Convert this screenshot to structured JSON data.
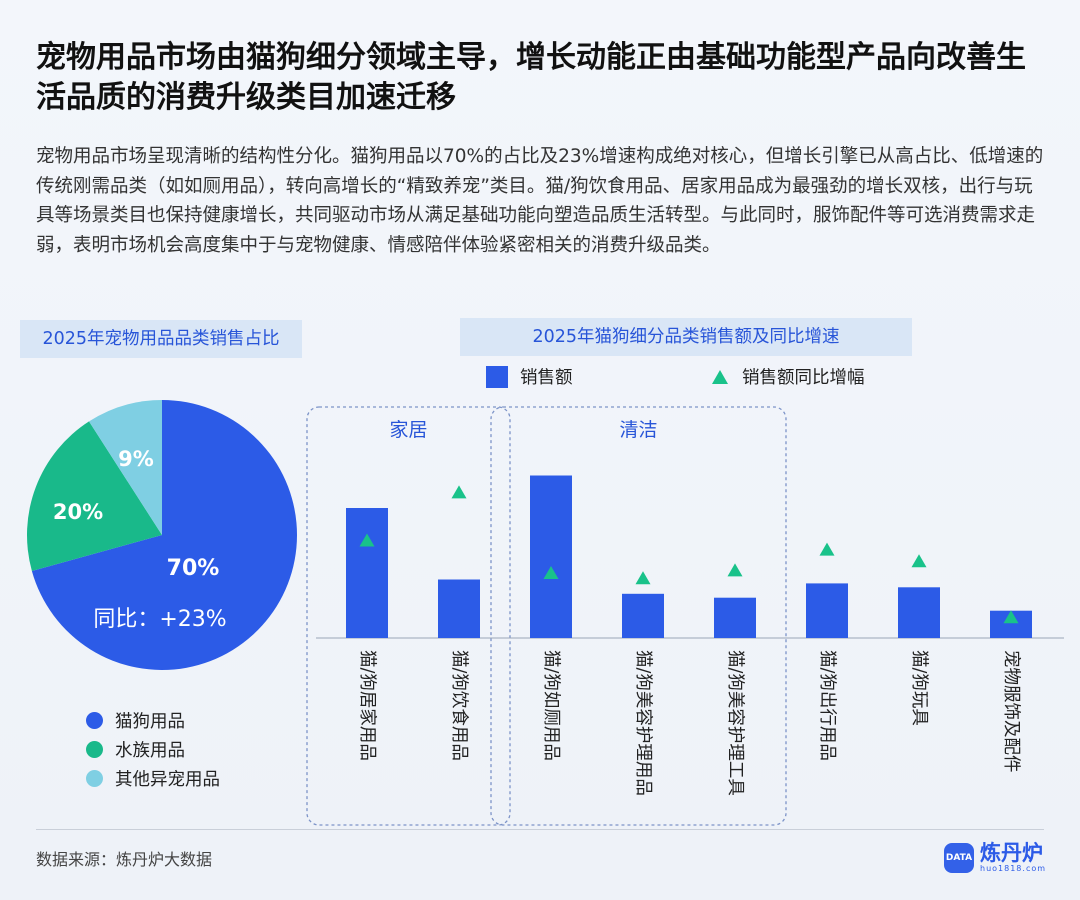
{
  "title": "宠物用品市场由猫狗细分领域主导，增长动能正由基础功能型产品向改善生活品质的消费升级类目加速迁移",
  "description": "宠物用品市场呈现清晰的结构性分化。猫狗用品以70%的占比及23%增速构成绝对核心，但增长引擎已从高占比、低增速的传统刚需品类（如如厕用品），转向高增长的“精致养宠”类目。猫/狗饮食用品、居家用品成为最强劲的增长双核，出行与玩具等场景类目也保持健康增长，共同驱动市场从满足基础功能向塑造品质生活转型。与此同时，服饰配件等可选消费需求走弱，表明市场机会高度集中于与宠物健康、情感陪伴体验紧密相关的消费升级品类。",
  "pie_panel_title": "2025年宠物用品品类销售占比",
  "bar_panel_title": "2025年猫狗细分品类销售额及同比增速",
  "chart_data": [
    {
      "type": "pie",
      "title": "2025年宠物用品品类销售占比",
      "slices": [
        {
          "name": "猫狗用品",
          "value": 70,
          "label": "70%",
          "color": "#2c5be7"
        },
        {
          "name": "水族用品",
          "value": 20,
          "label": "20%",
          "color": "#19b98a"
        },
        {
          "name": "其他异宠用品",
          "value": 9,
          "label": "9%",
          "color": "#7fcfe3"
        }
      ],
      "annotation": "同比：+23%",
      "legend_position": "bottom-left"
    },
    {
      "type": "bar",
      "title": "2025年猫狗细分品类销售额及同比增速",
      "categories": [
        "猫/狗居家用品",
        "猫/狗饮食用品",
        "猫/狗如厕用品",
        "猫/狗美容护理用品",
        "猫/狗美容护理工具",
        "猫/狗出行用品",
        "猫/狗玩具",
        "宠物服饰及配件"
      ],
      "series": [
        {
          "name": "销售额",
          "mark": "bar",
          "color": "#2c5be7",
          "values": [
            100,
            45,
            125,
            34,
            31,
            42,
            39,
            21
          ]
        },
        {
          "name": "销售额同比增幅",
          "mark": "triangle",
          "color": "#19c28a",
          "values": [
            75,
            112,
            50,
            46,
            52,
            68,
            59,
            16
          ]
        }
      ],
      "groups": [
        {
          "label": "家居",
          "start": 0,
          "end": 1
        },
        {
          "label": "清洁",
          "start": 2,
          "end": 4
        }
      ],
      "legend_position": "top-center"
    }
  ],
  "source": "数据来源：炼丹炉大数据",
  "logo": {
    "name": "炼丹炉",
    "url": "huo1818.com",
    "badge": "DATA"
  }
}
